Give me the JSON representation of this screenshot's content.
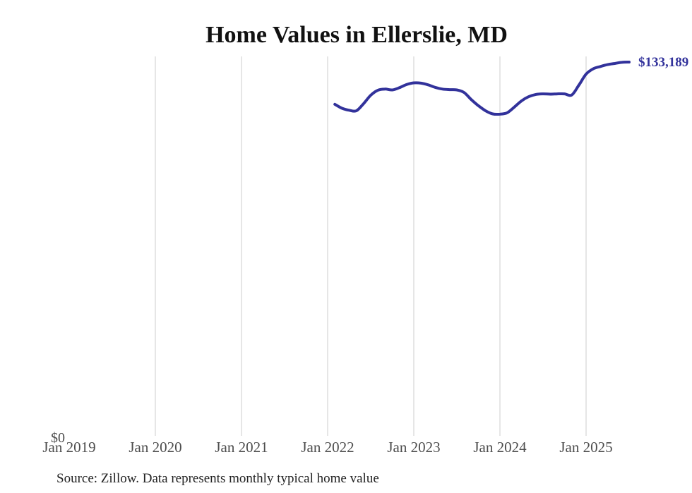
{
  "chart": {
    "title": "Home Values in Ellerslie, MD",
    "end_label": "$133,189",
    "y_zero_label": "$0",
    "source": "Source: Zillow. Data represents monthly typical home value",
    "colors": {
      "line": "#32329B",
      "end_label": "#32329B",
      "grid": "#cccccc",
      "tick": "#4d4d4d",
      "title": "#111111",
      "source": "#222222"
    }
  },
  "chart_data": {
    "type": "line",
    "title": "Home Values in Ellerslie, MD",
    "xlabel": "",
    "ylabel": "",
    "x_tick_labels": [
      "Jan 2019",
      "Jan 2020",
      "Jan 2021",
      "Jan 2022",
      "Jan 2023",
      "Jan 2024",
      "Jan 2025"
    ],
    "ylim": [
      0,
      135000
    ],
    "grid": "vertical",
    "legend": "none",
    "series": [
      {
        "name": "Monthly typical home value",
        "months": [
          "2022-02",
          "2022-03",
          "2022-04",
          "2022-05",
          "2022-06",
          "2022-07",
          "2022-08",
          "2022-09",
          "2022-10",
          "2022-11",
          "2022-12",
          "2023-01",
          "2023-02",
          "2023-03",
          "2023-04",
          "2023-05",
          "2023-06",
          "2023-07",
          "2023-08",
          "2023-09",
          "2023-10",
          "2023-11",
          "2023-12",
          "2024-01",
          "2024-02",
          "2024-03",
          "2024-04",
          "2024-05",
          "2024-06",
          "2024-07",
          "2024-08",
          "2024-09",
          "2024-10",
          "2024-11",
          "2024-12",
          "2025-01",
          "2025-02",
          "2025-03",
          "2025-04",
          "2025-05",
          "2025-06",
          "2025-07"
        ],
        "values": [
          118200,
          116800,
          116100,
          115900,
          118400,
          121400,
          123200,
          123600,
          123300,
          124100,
          125200,
          125800,
          125700,
          125100,
          124200,
          123600,
          123400,
          123300,
          122400,
          119900,
          117700,
          115900,
          114800,
          114700,
          115200,
          117200,
          119400,
          120900,
          121700,
          121900,
          121800,
          121900,
          121900,
          121500,
          125000,
          128900,
          130800,
          131600,
          132300,
          132700,
          133100,
          133189
        ]
      }
    ],
    "latest": {
      "month": "2025-07",
      "value": 133189,
      "label": "$133,189"
    }
  }
}
